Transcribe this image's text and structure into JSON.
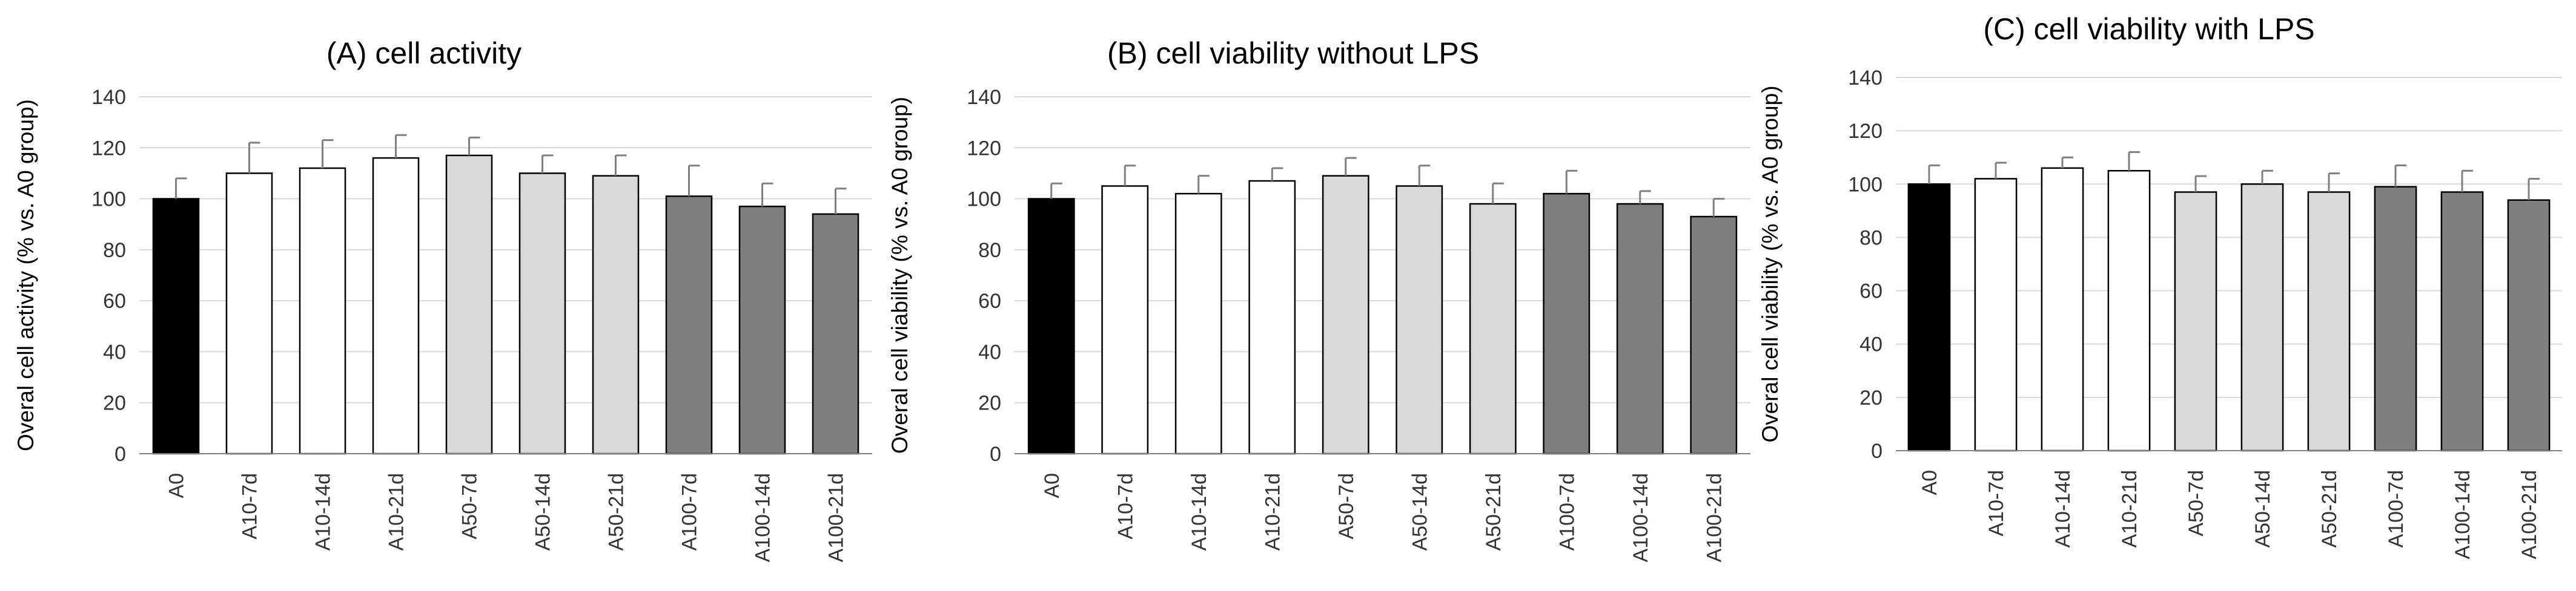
{
  "figure": {
    "colors": {
      "black": "#000000",
      "white": "#ffffff",
      "light": "#d9d9d9",
      "dark": "#7f7f7f"
    }
  },
  "chart_data": [
    {
      "type": "bar",
      "title": "(A) cell activity",
      "xlabel": "",
      "ylabel": "Overal cell activity (% vs. A0 group)",
      "ylim": [
        0,
        140
      ],
      "yticks": [
        0,
        20,
        40,
        60,
        80,
        100,
        120,
        140
      ],
      "grid": true,
      "categories": [
        "A0",
        "A10-7d",
        "A10-14d",
        "A10-21d",
        "A50-7d",
        "A50-14d",
        "A50-21d",
        "A100-7d",
        "A100-14d",
        "A100-21d"
      ],
      "values": [
        100,
        110,
        112,
        116,
        117,
        110,
        109,
        101,
        97,
        94
      ],
      "errors": [
        8,
        12,
        11,
        9,
        7,
        7,
        8,
        12,
        9,
        10
      ],
      "fills": [
        "black",
        "white",
        "white",
        "white",
        "light",
        "light",
        "light",
        "dark",
        "dark",
        "dark"
      ]
    },
    {
      "type": "bar",
      "title": "(B) cell viability without LPS",
      "xlabel": "",
      "ylabel": "Overal cell viability (% vs. A0 group)",
      "ylim": [
        0,
        140
      ],
      "yticks": [
        0,
        20,
        40,
        60,
        80,
        100,
        120,
        140
      ],
      "grid": true,
      "categories": [
        "A0",
        "A10-7d",
        "A10-14d",
        "A10-21d",
        "A50-7d",
        "A50-14d",
        "A50-21d",
        "A100-7d",
        "A100-14d",
        "A100-21d"
      ],
      "values": [
        100,
        105,
        102,
        107,
        109,
        105,
        98,
        102,
        98,
        93
      ],
      "errors": [
        6,
        8,
        7,
        5,
        7,
        8,
        8,
        9,
        5,
        7
      ],
      "fills": [
        "black",
        "white",
        "white",
        "white",
        "light",
        "light",
        "light",
        "dark",
        "dark",
        "dark"
      ]
    },
    {
      "type": "bar",
      "title": "(C) cell viability with LPS",
      "xlabel": "",
      "ylabel": "Overal cell viability (% vs. A0 group)",
      "ylim": [
        0,
        140
      ],
      "yticks": [
        0,
        20,
        40,
        60,
        80,
        100,
        120,
        140
      ],
      "grid": true,
      "categories": [
        "A0",
        "A10-7d",
        "A10-14d",
        "A10-21d",
        "A50-7d",
        "A50-14d",
        "A50-21d",
        "A100-7d",
        "A100-14d",
        "A100-21d"
      ],
      "values": [
        100,
        102,
        106,
        105,
        97,
        100,
        97,
        99,
        97,
        94
      ],
      "errors": [
        7,
        6,
        4,
        7,
        6,
        5,
        7,
        8,
        8,
        8
      ],
      "fills": [
        "black",
        "white",
        "white",
        "white",
        "light",
        "light",
        "light",
        "dark",
        "dark",
        "dark"
      ]
    }
  ]
}
